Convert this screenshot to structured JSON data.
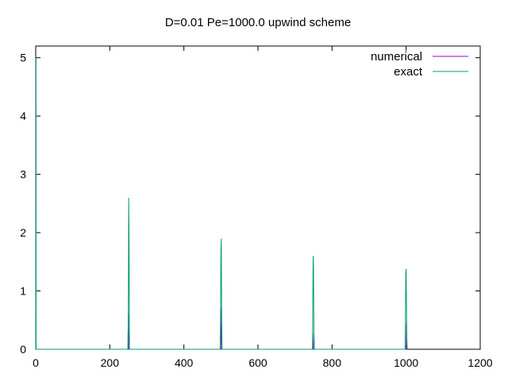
{
  "chart_data": {
    "type": "line",
    "title": "D=0.01 Pe=1000.0 upwind scheme",
    "xlabel": "",
    "ylabel": "",
    "xlim": [
      0,
      1200
    ],
    "ylim": [
      0,
      5.2
    ],
    "x_ticks": [
      0,
      200,
      400,
      600,
      800,
      1000,
      1200
    ],
    "y_ticks": [
      0,
      1,
      2,
      3,
      4,
      5
    ],
    "grid": false,
    "legend_position": "top-right",
    "series": [
      {
        "name": "numerical",
        "color": "#9400d3",
        "points": [
          [
            0,
            0
          ],
          [
            0.5,
            5.0
          ],
          [
            1,
            0
          ],
          [
            249,
            0
          ],
          [
            250,
            0.6
          ],
          [
            251,
            0
          ],
          [
            499,
            0
          ],
          [
            500,
            0.3
          ],
          [
            501,
            0.7
          ],
          [
            502,
            0
          ],
          [
            749,
            0
          ],
          [
            750,
            0.15
          ],
          [
            751,
            0.3
          ],
          [
            752,
            0
          ],
          [
            999,
            0
          ],
          [
            1000,
            0.08
          ],
          [
            1001,
            0.45
          ],
          [
            1002,
            0.15
          ],
          [
            1003,
            0
          ]
        ]
      },
      {
        "name": "exact",
        "color": "#009e73",
        "points": [
          [
            0,
            0
          ],
          [
            0.5,
            5.0
          ],
          [
            1,
            0
          ],
          [
            249,
            0
          ],
          [
            250,
            0.6
          ],
          [
            251,
            2.6
          ],
          [
            252,
            1.9
          ],
          [
            253,
            0
          ],
          [
            498,
            0
          ],
          [
            499,
            0.5
          ],
          [
            500,
            1.7
          ],
          [
            501,
            1.9
          ],
          [
            502,
            0.6
          ],
          [
            503,
            0
          ],
          [
            747,
            0
          ],
          [
            748,
            0.8
          ],
          [
            749,
            1.6
          ],
          [
            750,
            1.4
          ],
          [
            751,
            0.2
          ],
          [
            752,
            0
          ],
          [
            997,
            0
          ],
          [
            998,
            0.4
          ],
          [
            999,
            1.3
          ],
          [
            1000,
            1.38
          ],
          [
            1001,
            0.7
          ],
          [
            1002,
            0
          ]
        ]
      }
    ]
  }
}
